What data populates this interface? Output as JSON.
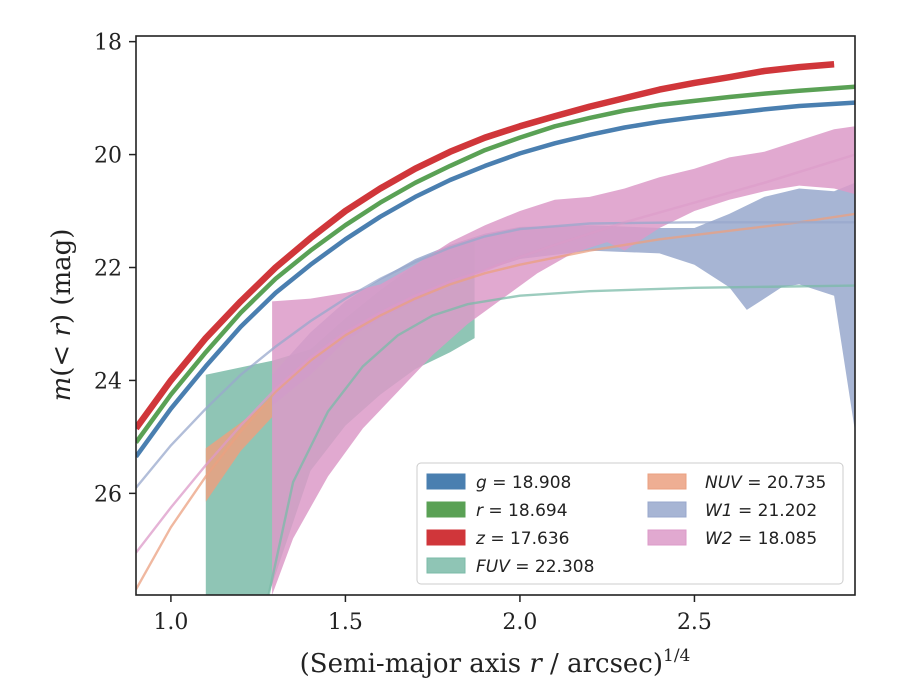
{
  "chart_data": {
    "type": "line",
    "xlabel_main": "(Semi-major axis ",
    "xlabel_var": "r",
    "xlabel_tail": " / arcsec)",
    "xlabel_exp": "1/4",
    "ylabel_main": "m",
    "ylabel_paren": "(< ",
    "ylabel_var": "r",
    "ylabel_tail": ") (mag)",
    "xlim": [
      0.9,
      2.96
    ],
    "ylim": [
      27.8,
      17.9
    ],
    "y_inverted": true,
    "grid": false,
    "legend_position": "lower-right",
    "xticks": [
      1.0,
      1.5,
      2.0,
      2.5
    ],
    "xtick_labels": [
      "1.0",
      "1.5",
      "2.0",
      "2.5"
    ],
    "yticks": [
      18,
      20,
      22,
      24,
      26
    ],
    "ytick_labels": [
      "18",
      "20",
      "22",
      "24",
      "26"
    ],
    "series": [
      {
        "name": "g = 18.908",
        "legend_var": "g",
        "legend_value": "= 18.908",
        "kind": "line",
        "color": "#4a7fb0",
        "data": [
          [
            0.9,
            25.35
          ],
          [
            1.0,
            24.5
          ],
          [
            1.1,
            23.75
          ],
          [
            1.2,
            23.05
          ],
          [
            1.3,
            22.45
          ],
          [
            1.4,
            21.95
          ],
          [
            1.5,
            21.5
          ],
          [
            1.6,
            21.1
          ],
          [
            1.7,
            20.75
          ],
          [
            1.8,
            20.45
          ],
          [
            1.9,
            20.2
          ],
          [
            2.0,
            19.98
          ],
          [
            2.1,
            19.8
          ],
          [
            2.2,
            19.65
          ],
          [
            2.3,
            19.52
          ],
          [
            2.4,
            19.42
          ],
          [
            2.5,
            19.34
          ],
          [
            2.6,
            19.27
          ],
          [
            2.7,
            19.2
          ],
          [
            2.8,
            19.14
          ],
          [
            2.96,
            19.08
          ]
        ]
      },
      {
        "name": "r = 18.694",
        "legend_var": "r",
        "legend_value": "= 18.694",
        "kind": "line",
        "color": "#5aa155",
        "data": [
          [
            0.9,
            25.1
          ],
          [
            1.0,
            24.25
          ],
          [
            1.1,
            23.5
          ],
          [
            1.2,
            22.8
          ],
          [
            1.3,
            22.2
          ],
          [
            1.4,
            21.7
          ],
          [
            1.5,
            21.25
          ],
          [
            1.6,
            20.85
          ],
          [
            1.7,
            20.5
          ],
          [
            1.8,
            20.2
          ],
          [
            1.9,
            19.92
          ],
          [
            2.0,
            19.7
          ],
          [
            2.1,
            19.5
          ],
          [
            2.2,
            19.35
          ],
          [
            2.3,
            19.22
          ],
          [
            2.4,
            19.12
          ],
          [
            2.5,
            19.05
          ],
          [
            2.6,
            18.98
          ],
          [
            2.7,
            18.92
          ],
          [
            2.8,
            18.87
          ],
          [
            2.96,
            18.8
          ]
        ]
      },
      {
        "name": "z = 17.636",
        "legend_var": "z",
        "legend_value": "= 17.636",
        "kind": "line",
        "color": "#d0363a",
        "data": [
          [
            0.9,
            24.85
          ],
          [
            1.0,
            24.0
          ],
          [
            1.1,
            23.25
          ],
          [
            1.2,
            22.6
          ],
          [
            1.3,
            22.0
          ],
          [
            1.4,
            21.48
          ],
          [
            1.5,
            21.0
          ],
          [
            1.6,
            20.6
          ],
          [
            1.7,
            20.25
          ],
          [
            1.8,
            19.95
          ],
          [
            1.9,
            19.7
          ],
          [
            2.0,
            19.5
          ],
          [
            2.1,
            19.32
          ],
          [
            2.2,
            19.15
          ],
          [
            2.3,
            19.0
          ],
          [
            2.4,
            18.85
          ],
          [
            2.5,
            18.73
          ],
          [
            2.6,
            18.63
          ],
          [
            2.7,
            18.52
          ],
          [
            2.8,
            18.45
          ],
          [
            2.9,
            18.4
          ]
        ]
      },
      {
        "name": "FUV = 22.308",
        "legend_var": "FUV",
        "legend_value": "= 22.308",
        "kind": "band",
        "color": "#7bbba8",
        "upper": [
          [
            1.1,
            23.9
          ],
          [
            1.29,
            23.65
          ],
          [
            1.4,
            23.45
          ],
          [
            1.5,
            22.9
          ],
          [
            1.6,
            22.4
          ],
          [
            1.7,
            21.95
          ],
          [
            1.8,
            21.6
          ],
          [
            1.87,
            21.5
          ]
        ],
        "lower": [
          [
            1.1,
            27.8
          ],
          [
            1.28,
            27.8
          ],
          [
            1.4,
            25.6
          ],
          [
            1.5,
            24.8
          ],
          [
            1.6,
            24.25
          ],
          [
            1.7,
            23.8
          ],
          [
            1.8,
            23.5
          ],
          [
            1.87,
            23.25
          ]
        ],
        "model": [
          [
            1.28,
            27.8
          ],
          [
            1.35,
            25.8
          ],
          [
            1.45,
            24.55
          ],
          [
            1.55,
            23.75
          ],
          [
            1.65,
            23.2
          ],
          [
            1.75,
            22.85
          ],
          [
            1.85,
            22.65
          ],
          [
            2.0,
            22.5
          ],
          [
            2.2,
            22.42
          ],
          [
            2.5,
            22.36
          ],
          [
            2.96,
            22.32
          ]
        ]
      },
      {
        "name": "NUV = 20.735",
        "legend_var": "NUV",
        "legend_value": "= 20.735",
        "kind": "band",
        "color": "#eba080",
        "upper": [
          [
            1.1,
            25.2
          ],
          [
            1.2,
            24.75
          ],
          [
            1.29,
            24.3
          ]
        ],
        "lower": [
          [
            1.1,
            26.15
          ],
          [
            1.2,
            25.25
          ],
          [
            1.29,
            24.65
          ]
        ],
        "model": [
          [
            0.9,
            27.7
          ],
          [
            1.0,
            26.6
          ],
          [
            1.1,
            25.7
          ],
          [
            1.2,
            24.9
          ],
          [
            1.3,
            24.2
          ],
          [
            1.4,
            23.65
          ],
          [
            1.5,
            23.2
          ],
          [
            1.6,
            22.85
          ],
          [
            1.7,
            22.55
          ],
          [
            1.8,
            22.3
          ],
          [
            1.9,
            22.1
          ],
          [
            2.0,
            21.95
          ],
          [
            2.2,
            21.7
          ],
          [
            2.4,
            21.5
          ],
          [
            2.6,
            21.35
          ],
          [
            2.8,
            21.2
          ],
          [
            2.96,
            21.05
          ]
        ]
      },
      {
        "name": "W1 = 21.202",
        "legend_var": "W1",
        "legend_value": "= 21.202",
        "kind": "band",
        "color": "#98a8cc",
        "upper": [
          [
            1.29,
            23.9
          ],
          [
            1.4,
            23.15
          ],
          [
            1.5,
            22.6
          ],
          [
            1.6,
            22.2
          ],
          [
            1.7,
            21.85
          ],
          [
            1.8,
            21.6
          ],
          [
            1.9,
            21.4
          ],
          [
            2.0,
            21.28
          ],
          [
            2.2,
            21.25
          ],
          [
            2.4,
            21.3
          ],
          [
            2.5,
            21.3
          ],
          [
            2.6,
            21.05
          ],
          [
            2.7,
            20.75
          ],
          [
            2.8,
            20.6
          ],
          [
            2.9,
            20.65
          ],
          [
            2.96,
            20.5
          ]
        ],
        "lower": [
          [
            1.29,
            24.45
          ],
          [
            1.4,
            23.9
          ],
          [
            1.5,
            23.3
          ],
          [
            1.6,
            22.9
          ],
          [
            1.7,
            22.6
          ],
          [
            1.8,
            22.3
          ],
          [
            1.9,
            22.05
          ],
          [
            2.0,
            21.85
          ],
          [
            2.2,
            21.7
          ],
          [
            2.4,
            21.75
          ],
          [
            2.5,
            21.95
          ],
          [
            2.6,
            22.35
          ],
          [
            2.65,
            22.75
          ],
          [
            2.7,
            22.55
          ],
          [
            2.75,
            22.35
          ],
          [
            2.8,
            22.3
          ],
          [
            2.9,
            22.5
          ],
          [
            2.96,
            24.9
          ]
        ],
        "model": [
          [
            0.9,
            25.9
          ],
          [
            1.0,
            25.15
          ],
          [
            1.1,
            24.5
          ],
          [
            1.2,
            23.9
          ],
          [
            1.3,
            23.4
          ],
          [
            1.4,
            22.95
          ],
          [
            1.5,
            22.55
          ],
          [
            1.6,
            22.2
          ],
          [
            1.7,
            21.9
          ],
          [
            1.8,
            21.65
          ],
          [
            1.9,
            21.45
          ],
          [
            2.0,
            21.32
          ],
          [
            2.2,
            21.22
          ],
          [
            2.5,
            21.2
          ],
          [
            2.96,
            21.2
          ]
        ]
      },
      {
        "name": "W2 = 18.085",
        "legend_var": "W2",
        "legend_value": "= 18.085",
        "kind": "band",
        "color": "#dc9ac8",
        "upper": [
          [
            1.29,
            22.6
          ],
          [
            1.4,
            22.55
          ],
          [
            1.5,
            22.45
          ],
          [
            1.6,
            22.3
          ],
          [
            1.7,
            21.95
          ],
          [
            1.8,
            21.55
          ],
          [
            1.9,
            21.25
          ],
          [
            2.0,
            21.0
          ],
          [
            2.1,
            20.8
          ],
          [
            2.2,
            20.75
          ],
          [
            2.3,
            20.6
          ],
          [
            2.4,
            20.4
          ],
          [
            2.5,
            20.25
          ],
          [
            2.6,
            20.05
          ],
          [
            2.7,
            19.95
          ],
          [
            2.8,
            19.75
          ],
          [
            2.9,
            19.55
          ],
          [
            2.96,
            19.5
          ]
        ],
        "lower": [
          [
            1.29,
            27.8
          ],
          [
            1.35,
            26.8
          ],
          [
            1.45,
            25.7
          ],
          [
            1.55,
            24.85
          ],
          [
            1.65,
            24.2
          ],
          [
            1.75,
            23.55
          ],
          [
            1.85,
            23.0
          ],
          [
            1.95,
            22.55
          ],
          [
            2.05,
            22.1
          ],
          [
            2.15,
            21.75
          ],
          [
            2.25,
            21.55
          ],
          [
            2.3,
            21.7
          ],
          [
            2.4,
            21.3
          ],
          [
            2.5,
            21.0
          ],
          [
            2.6,
            20.8
          ],
          [
            2.7,
            20.65
          ],
          [
            2.8,
            20.55
          ],
          [
            2.9,
            20.6
          ],
          [
            2.96,
            20.7
          ]
        ],
        "model": [
          [
            0.9,
            27.05
          ],
          [
            1.0,
            26.25
          ],
          [
            1.1,
            25.5
          ],
          [
            1.2,
            24.8
          ],
          [
            1.3,
            24.15
          ],
          [
            1.4,
            23.6
          ],
          [
            1.5,
            23.15
          ],
          [
            1.6,
            22.8
          ],
          [
            1.7,
            22.5
          ],
          [
            1.8,
            22.25
          ],
          [
            1.9,
            22.05
          ],
          [
            1.96,
            21.9
          ]
        ],
        "model2": [
          [
            1.96,
            21.9
          ],
          [
            2.1,
            21.6
          ],
          [
            2.3,
            21.2
          ],
          [
            2.5,
            20.85
          ],
          [
            2.7,
            20.5
          ],
          [
            2.96,
            20.0
          ]
        ]
      }
    ]
  }
}
